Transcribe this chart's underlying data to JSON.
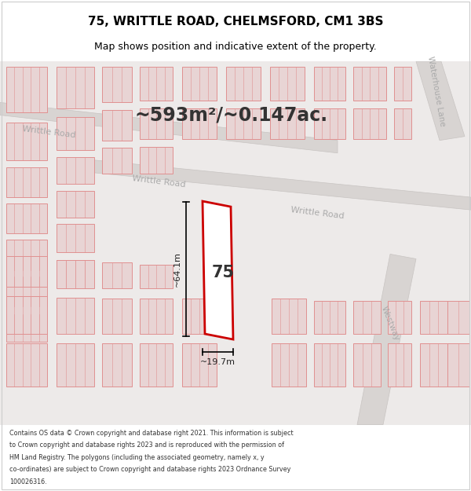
{
  "title": "75, WRITTLE ROAD, CHELMSFORD, CM1 3BS",
  "subtitle": "Map shows position and indicative extent of the property.",
  "footer_lines": [
    "Contains OS data © Crown copyright and database right 2021. This information is subject",
    "to Crown copyright and database rights 2023 and is reproduced with the permission of",
    "HM Land Registry. The polygons (including the associated geometry, namely x, y",
    "co-ordinates) are subject to Crown copyright and database rights 2023 Ordnance Survey",
    "100026316."
  ],
  "area_label": "~593m²/~0.147ac.",
  "dim_height": "~64.1m",
  "dim_width": "~19.7m",
  "number_label": "75",
  "map_bg": "#edeae9",
  "road_fill": "#d8d4d2",
  "road_edge": "#c8c4c2",
  "building_fill": "#e8d4d4",
  "building_outline": "#e09090",
  "highlight_outline": "#cc0000",
  "highlight_fill": "#ffffff",
  "road_label_color": "#aaaaaa",
  "title_color": "#000000",
  "footer_color": "#333333",
  "panel_bg": "#ffffff"
}
